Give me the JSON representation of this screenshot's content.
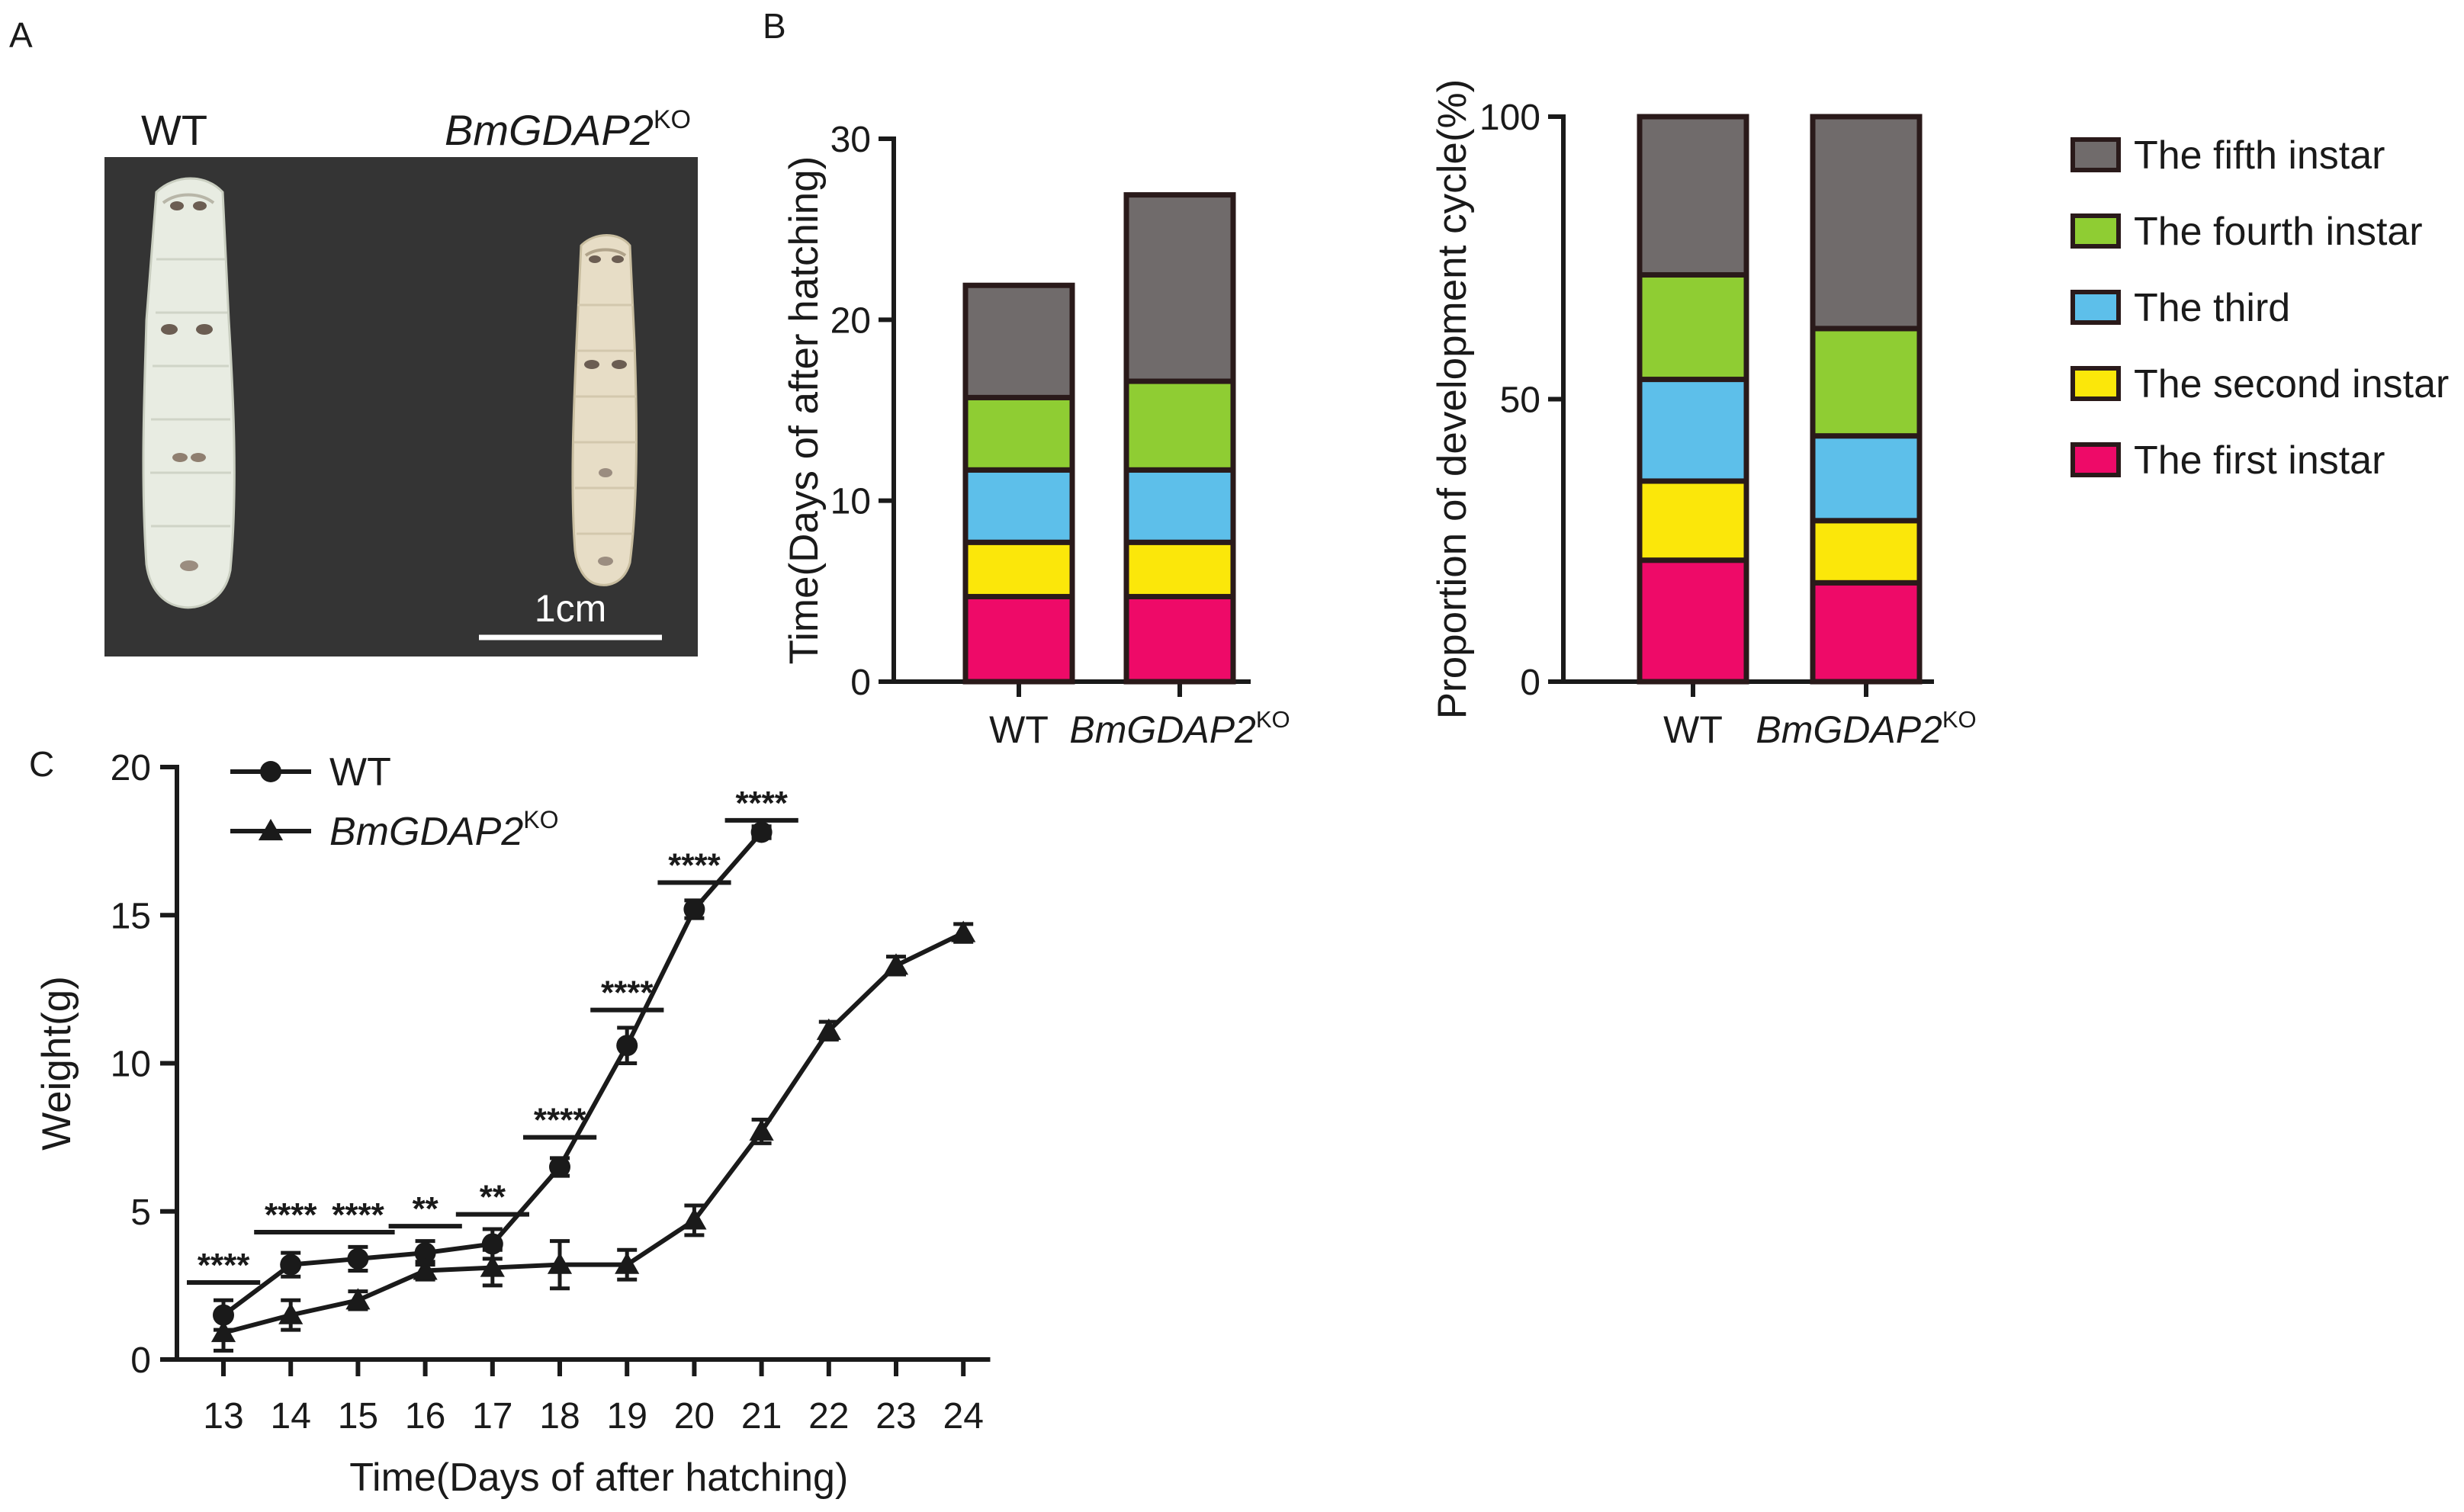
{
  "panels": {
    "a": "A",
    "b": "B",
    "c": "C"
  },
  "panel_a": {
    "label_wt": "WT",
    "label_ko_base": "BmGDAP2",
    "label_ko_sup": "KO",
    "scale_label": "1cm",
    "photo_background": "#343434"
  },
  "stage_colors": {
    "first": "#ee0a68",
    "second": "#fbe70a",
    "third": "#5dbfea",
    "fourth": "#8fcd33",
    "fifth": "#706b6b"
  },
  "chart_data": [
    {
      "type": "bar",
      "stacked": true,
      "ylabel": "Time(Days of after hatching)",
      "ylim": [
        0,
        30
      ],
      "yticks": [
        0,
        10,
        20,
        30
      ],
      "categories": [
        {
          "base": "WT",
          "sup": ""
        },
        {
          "base": "BmGDAP2",
          "sup": "KO"
        }
      ],
      "series": [
        {
          "name": "The first instar",
          "values": [
            4.7,
            4.7
          ],
          "color": "#ee0a68"
        },
        {
          "name": "The second instar",
          "values": [
            3.0,
            3.0
          ],
          "color": "#fbe70a"
        },
        {
          "name": "The third",
          "values": [
            4.0,
            4.0
          ],
          "color": "#5dbfea"
        },
        {
          "name": "The fourth instar",
          "values": [
            4.0,
            4.9
          ],
          "color": "#8fcd33"
        },
        {
          "name": "The fifth instar",
          "values": [
            6.2,
            10.3
          ],
          "color": "#706b6b"
        }
      ]
    },
    {
      "type": "bar",
      "stacked": true,
      "ylabel": "Proportion of development cycle(%)",
      "ylim": [
        0,
        100
      ],
      "yticks": [
        0,
        50,
        100
      ],
      "categories": [
        {
          "base": "WT",
          "sup": ""
        },
        {
          "base": "BmGDAP2",
          "sup": "KO"
        }
      ],
      "series": [
        {
          "name": "The first instar",
          "values": [
            21.5,
            17.5
          ],
          "color": "#ee0a68"
        },
        {
          "name": "The second instar",
          "values": [
            14,
            11
          ],
          "color": "#fbe70a"
        },
        {
          "name": "The third",
          "values": [
            18,
            15
          ],
          "color": "#5dbfea"
        },
        {
          "name": "The fourth instar",
          "values": [
            18.5,
            19
          ],
          "color": "#8fcd33"
        },
        {
          "name": "The fifth instar",
          "values": [
            28,
            37.5
          ],
          "color": "#706b6b"
        }
      ],
      "legend": {
        "placement": "right",
        "order": [
          "The fifth instar",
          "The fourth instar",
          "The third",
          "The second instar",
          "The first instar"
        ]
      }
    },
    {
      "type": "line",
      "xlabel": "Time(Days of after hatching)",
      "ylabel": "Weight(g)",
      "xlim": [
        12.4,
        24.4
      ],
      "ylim": [
        0,
        20
      ],
      "xticks": [
        13,
        14,
        15,
        16,
        17,
        18,
        19,
        20,
        21,
        22,
        23,
        24
      ],
      "yticks": [
        0,
        5,
        10,
        15,
        20
      ],
      "series": [
        {
          "name": "WT",
          "name_sup": "",
          "marker": "circle",
          "x": [
            13,
            14,
            15,
            16,
            17,
            18,
            19,
            20,
            21
          ],
          "y": [
            1.5,
            3.2,
            3.4,
            3.6,
            3.9,
            6.5,
            10.6,
            15.2,
            17.8
          ],
          "err": [
            0.5,
            0.4,
            0.4,
            0.4,
            0.5,
            0.3,
            0.6,
            0.3,
            0.2
          ]
        },
        {
          "name": "BmGDAP2",
          "name_sup": "KO",
          "marker": "triangle",
          "x": [
            13,
            14,
            15,
            16,
            17,
            18,
            19,
            20,
            21,
            22,
            23,
            24
          ],
          "y": [
            0.9,
            1.5,
            2.0,
            3.0,
            3.1,
            3.2,
            3.2,
            4.7,
            7.7,
            11.1,
            13.3,
            14.4
          ],
          "err": [
            0.6,
            0.5,
            0.3,
            0.3,
            0.6,
            0.8,
            0.5,
            0.5,
            0.4,
            0.3,
            0.3,
            0.3
          ]
        }
      ],
      "significance": [
        {
          "x1": 13,
          "x2": 14,
          "y": 2.6,
          "label": "****"
        },
        {
          "x1": 14,
          "x2": 15,
          "y": 4.3,
          "label": "****"
        },
        {
          "x1": 15,
          "x2": 16,
          "y": 4.3,
          "label": "****"
        },
        {
          "x1": 16,
          "x2": 17,
          "y": 4.5,
          "label": "**"
        },
        {
          "x1": 17,
          "x2": 18,
          "y": 4.9,
          "label": "**"
        },
        {
          "x1": 18,
          "x2": 19,
          "y": 7.5,
          "label": "****"
        },
        {
          "x1": 19,
          "x2": 20,
          "y": 11.8,
          "label": "****"
        },
        {
          "x1": 20,
          "x2": 21,
          "y": 16.1,
          "label": "****"
        },
        {
          "x1": 21,
          "x2": 22,
          "y": 18.2,
          "label": "****"
        }
      ]
    }
  ]
}
